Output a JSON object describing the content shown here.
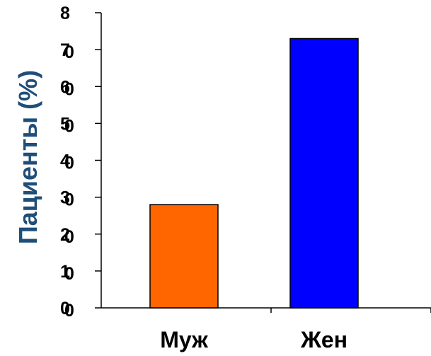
{
  "chart_data": {
    "type": "bar",
    "ylabel": "Пациенты (%)",
    "categories": [
      "Муж",
      "Жен"
    ],
    "values": [
      28,
      73
    ],
    "ylim": [
      0,
      80
    ],
    "ytick_labels": [
      [
        "0",
        "0"
      ],
      [
        "1",
        "0"
      ],
      [
        "2",
        "0"
      ],
      [
        "3",
        "0"
      ],
      [
        "4",
        "0"
      ],
      [
        "5",
        "0"
      ],
      [
        "6",
        "0"
      ],
      [
        "7",
        "0"
      ],
      [
        "8",
        ""
      ]
    ],
    "colors": [
      "#ff6600",
      "#0000ff"
    ],
    "grid": false,
    "legend": "none"
  }
}
